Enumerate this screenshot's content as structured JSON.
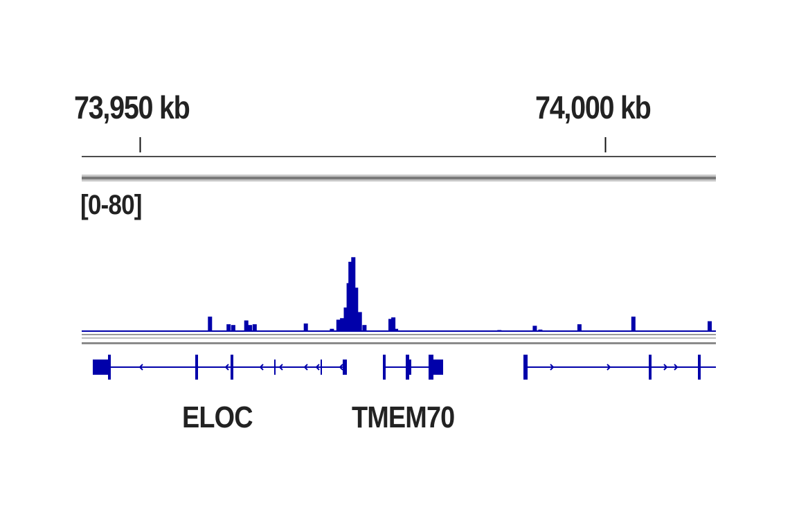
{
  "chart_data": {
    "type": "bar",
    "genome_axis": {
      "ticks": [
        {
          "label": "73,950 kb",
          "value_kb": 73950
        },
        {
          "label": "74,000 kb",
          "value_kb": 74000
        }
      ],
      "unit": "kb"
    },
    "track": {
      "range_label": "[0-80]",
      "ylim": [
        0,
        80
      ],
      "color": "#0000aa",
      "signal_kb": [
        {
          "kb": 73957.5,
          "v": 9.5
        },
        {
          "kb": 73959.5,
          "v": 4.5
        },
        {
          "kb": 73960.0,
          "v": 4.0
        },
        {
          "kb": 73961.4,
          "v": 7.0
        },
        {
          "kb": 73961.8,
          "v": 4.0
        },
        {
          "kb": 73962.3,
          "v": 4.5
        },
        {
          "kb": 73967.8,
          "v": 5.0
        },
        {
          "kb": 73970.6,
          "v": 1.5
        },
        {
          "kb": 73971.3,
          "v": 7.5
        },
        {
          "kb": 73971.7,
          "v": 8.5
        },
        {
          "kb": 73972.1,
          "v": 15.5
        },
        {
          "kb": 73972.4,
          "v": 31.5
        },
        {
          "kb": 73972.6,
          "v": 45.5
        },
        {
          "kb": 73972.9,
          "v": 48.5
        },
        {
          "kb": 73973.2,
          "v": 28.5
        },
        {
          "kb": 73973.6,
          "v": 12.5
        },
        {
          "kb": 73974.1,
          "v": 4.0
        },
        {
          "kb": 73976.9,
          "v": 8.0
        },
        {
          "kb": 73977.2,
          "v": 9.0
        },
        {
          "kb": 73977.5,
          "v": 1.5
        },
        {
          "kb": 73988.6,
          "v": 0.7
        },
        {
          "kb": 73992.4,
          "v": 3.5
        },
        {
          "kb": 73993.0,
          "v": 1.0
        },
        {
          "kb": 73997.2,
          "v": 4.5
        },
        {
          "kb": 74003.0,
          "v": 9.5
        },
        {
          "kb": 74011.2,
          "v": 6.5
        }
      ]
    },
    "genes": [
      {
        "name": "ELOC",
        "strand": "-",
        "start_kb": 73951.2,
        "end_kb": 73972.7
      },
      {
        "name": "TMEM70",
        "strand": "+",
        "start_kb": 73973.9,
        "end_kb": 73979.6
      },
      {
        "name": "",
        "strand": "+",
        "start_kb": 73989.9,
        "end_kb": 74012.0
      }
    ]
  },
  "labels": {
    "tick_1": "73,950 kb",
    "tick_2": "74,000 kb",
    "range": "[0-80]",
    "gene_1": "ELOC",
    "gene_2": "TMEM70"
  }
}
